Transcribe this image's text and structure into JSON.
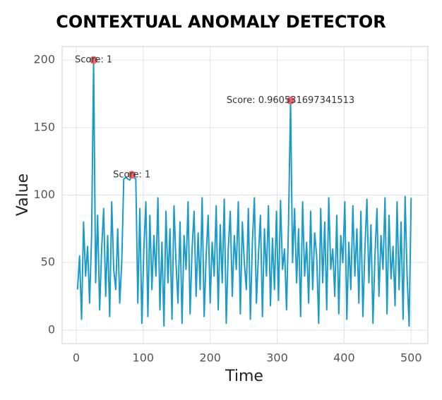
{
  "chart_data": {
    "type": "line",
    "title": "CONTEXTUAL ANOMALY DETECTOR",
    "x_label": "Time",
    "y_label": "Value",
    "x": [
      2,
      5,
      8,
      11,
      14,
      17,
      20,
      23,
      26,
      29,
      32,
      35,
      38,
      41,
      44,
      47,
      50,
      53,
      56,
      59,
      62,
      65,
      68,
      71,
      74,
      77,
      80,
      83,
      86,
      89,
      92,
      95,
      98,
      101,
      104,
      107,
      110,
      113,
      116,
      119,
      122,
      125,
      128,
      131,
      134,
      137,
      140,
      143,
      146,
      149,
      152,
      155,
      158,
      161,
      164,
      167,
      170,
      173,
      176,
      179,
      182,
      185,
      188,
      191,
      194,
      197,
      200,
      203,
      206,
      209,
      212,
      215,
      218,
      221,
      224,
      227,
      230,
      233,
      236,
      239,
      242,
      245,
      248,
      251,
      254,
      257,
      260,
      263,
      266,
      269,
      272,
      275,
      278,
      281,
      284,
      287,
      290,
      293,
      296,
      299,
      302,
      305,
      308,
      311,
      314,
      317,
      320,
      323,
      326,
      329,
      332,
      335,
      338,
      341,
      344,
      347,
      350,
      353,
      356,
      359,
      362,
      365,
      368,
      371,
      374,
      377,
      380,
      383,
      386,
      389,
      392,
      395,
      398,
      401,
      404,
      407,
      410,
      413,
      416,
      419,
      422,
      425,
      428,
      431,
      434,
      437,
      440,
      443,
      446,
      449,
      452,
      455,
      458,
      461,
      464,
      467,
      470,
      473,
      476,
      479,
      482,
      485,
      488,
      491,
      494,
      497,
      500
    ],
    "series": [
      {
        "color": "#1a9bc9",
        "values": [
          30,
          55,
          8,
          80,
          40,
          62,
          20,
          70,
          200,
          35,
          85,
          15,
          60,
          90,
          25,
          70,
          10,
          95,
          45,
          30,
          75,
          20,
          50,
          112,
          113,
          112,
          111,
          115,
          113,
          112,
          20,
          90,
          5,
          60,
          95,
          10,
          85,
          30,
          70,
          40,
          98,
          15,
          65,
          3,
          88,
          35,
          75,
          8,
          92,
          50,
          20,
          80,
          5,
          70,
          45,
          95,
          12,
          60,
          88,
          25,
          72,
          30,
          98,
          10,
          55,
          85,
          20,
          65,
          40,
          92,
          15,
          78,
          35,
          97,
          5,
          60,
          88,
          25,
          70,
          45,
          95,
          12,
          80,
          50,
          30,
          90,
          8,
          65,
          98,
          20,
          55,
          85,
          10,
          75,
          40,
          92,
          18,
          68,
          30,
          88,
          22,
          96,
          45,
          60,
          15,
          80,
          170,
          50,
          90,
          35,
          75,
          10,
          95,
          40,
          65,
          20,
          88,
          30,
          72,
          55,
          5,
          90,
          35,
          80,
          15,
          98,
          45,
          60,
          25,
          85,
          12,
          70,
          50,
          95,
          8,
          65,
          30,
          92,
          40,
          75,
          20,
          88,
          10,
          60,
          97,
          35,
          78,
          5,
          55,
          90,
          25,
          70,
          45,
          98,
          12,
          85,
          38,
          62,
          18,
          95,
          30,
          80,
          8,
          99,
          40,
          3,
          98
        ]
      }
    ],
    "anomalies": {
      "color": "#e8686b",
      "x": [
        26,
        83,
        320
      ],
      "values": [
        200,
        115,
        170
      ],
      "labels": [
        "Score: 1",
        "Score: 1",
        "Score: 0.960531697341513"
      ]
    },
    "xlim": [
      -21,
      525
    ],
    "ylim": [
      -10,
      210
    ],
    "xticks": [
      0,
      100,
      200,
      300,
      400,
      500
    ],
    "yticks": [
      0,
      50,
      100,
      150,
      200
    ],
    "grid": true
  }
}
